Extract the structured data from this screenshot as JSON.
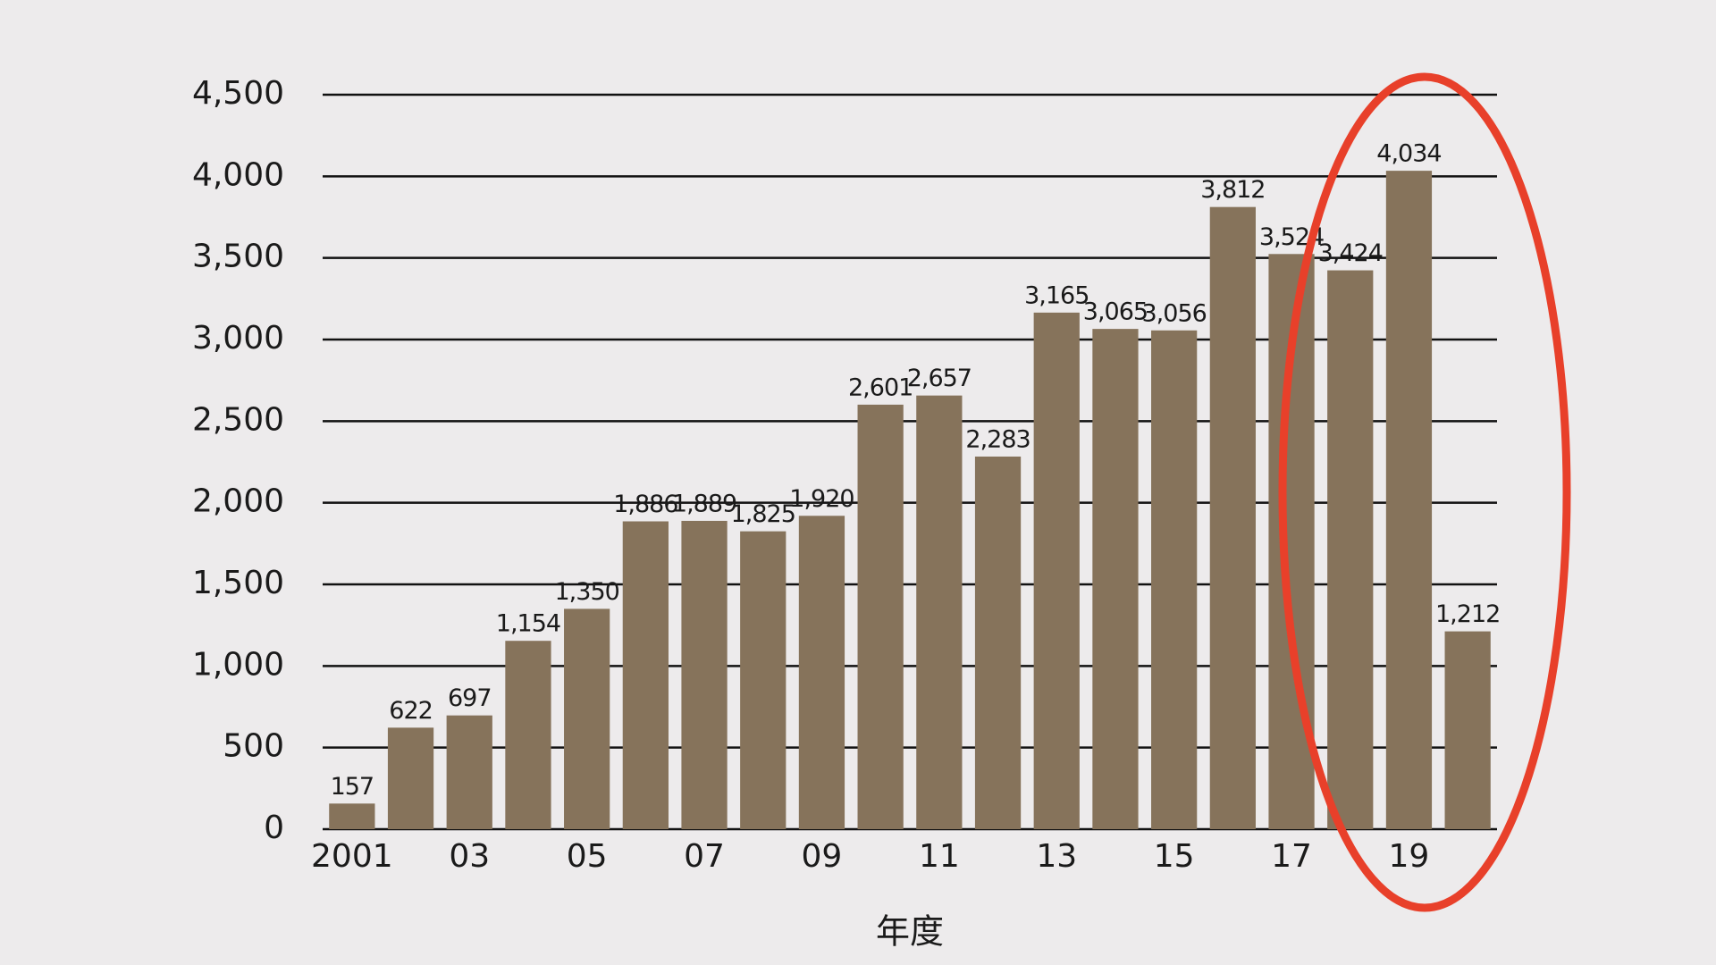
{
  "chart_data": {
    "type": "bar",
    "x_label": "年度",
    "categories": [
      "2001",
      null,
      "03",
      null,
      "05",
      null,
      "07",
      null,
      "09",
      null,
      "11",
      null,
      "13",
      null,
      "15",
      null,
      "17",
      null,
      "19",
      null
    ],
    "values": [
      157,
      622,
      697,
      1154,
      1350,
      1886,
      1889,
      1825,
      1920,
      2601,
      2657,
      2283,
      3165,
      3065,
      3056,
      3812,
      3524,
      3424,
      4034,
      1212
    ],
    "value_labels": [
      "157",
      "622",
      "697",
      "1,154",
      "1,350",
      "1,886",
      "1,889",
      "1,825",
      "1,920",
      "2,601",
      "2,657",
      "2,283",
      "3,165",
      "3,065",
      "3,056",
      "3,812",
      "3,524",
      "3,424",
      "4,034",
      "1,212"
    ],
    "color": "#86735b",
    "ylim": [
      0,
      4500
    ],
    "yticks": [
      0,
      500,
      {
        "value": 1000,
        "label": "1,000"
      },
      {
        "value": 1500,
        "label": "1,500"
      },
      {
        "value": 2000,
        "label": "2,000"
      },
      {
        "value": 2500,
        "label": "2,500"
      },
      {
        "value": 3000,
        "label": "3,000"
      },
      {
        "value": 3500,
        "label": "3,500"
      },
      {
        "value": 4000,
        "label": "4,000"
      },
      {
        "value": 4500,
        "label": "4,500"
      }
    ],
    "grid": true
  }
}
